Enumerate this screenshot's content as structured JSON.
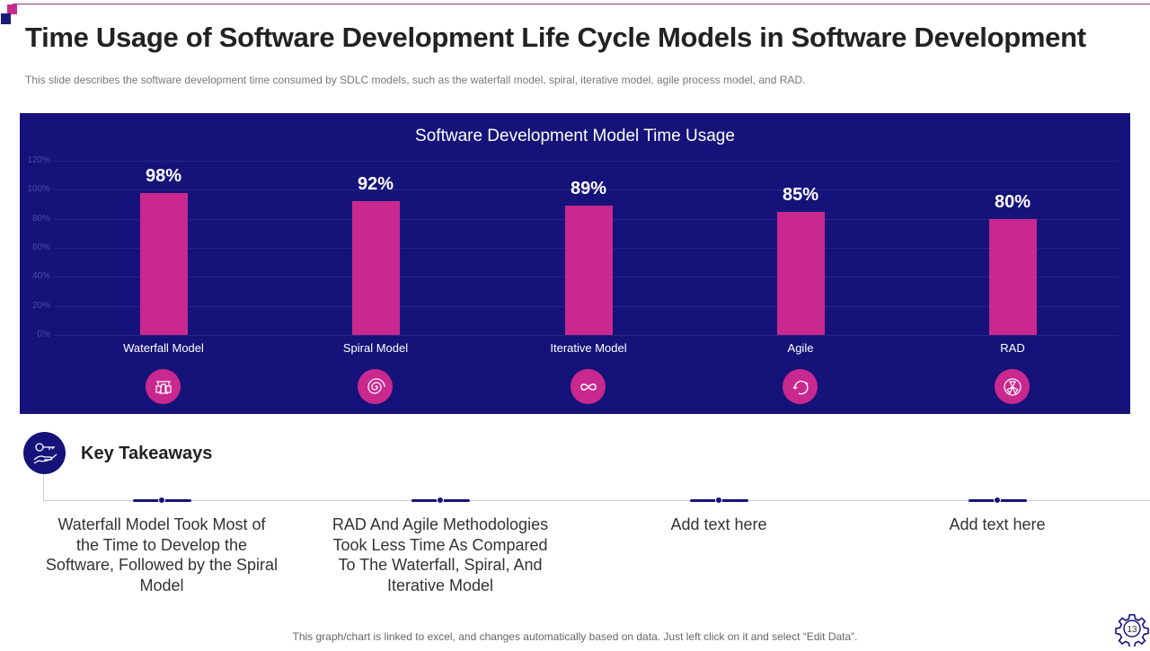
{
  "title": "Time Usage of Software Development Life Cycle Models in Software Development",
  "subtitle": "This slide describes the software  development  time consumed by SDLC models, such as the waterfall  model, spiral, iterative  model, agile process model, and RAD.",
  "chart_data": {
    "type": "bar",
    "title": "Software Development  Model Time Usage",
    "categories": [
      "Waterfall Model",
      "Spiral Model",
      "Iterative Model",
      "Agile",
      "RAD"
    ],
    "values": [
      98,
      92,
      89,
      85,
      80
    ],
    "data_labels": [
      "98%",
      "92%",
      "89%",
      "85%",
      "80%"
    ],
    "yticks": [
      "0%",
      "20%",
      "40%",
      "60%",
      "80%",
      "100%",
      "120%"
    ],
    "ylim": [
      0,
      120
    ],
    "xlabel": "",
    "ylabel": "",
    "grid": true,
    "colors": {
      "bar": "#c9288f",
      "background": "#15137a"
    },
    "icons": [
      "waterfall-process-icon",
      "spiral-icon",
      "infinity-loop-icon",
      "agile-cycle-icon",
      "rad-radiation-icon"
    ]
  },
  "takeaways": {
    "title": "Key Takeaways",
    "items": [
      "Waterfall Model Took Most of the Time to Develop the Software, Followed by the Spiral Model",
      "RAD And Agile Methodologies Took Less Time As Compared To The Waterfall, Spiral, And Iterative Model",
      "Add text here",
      "Add text here"
    ]
  },
  "footer": "This graph/chart is linked to excel, and changes automatically based on data. Just left click on it and select “Edit Data”.",
  "page_number": "13"
}
